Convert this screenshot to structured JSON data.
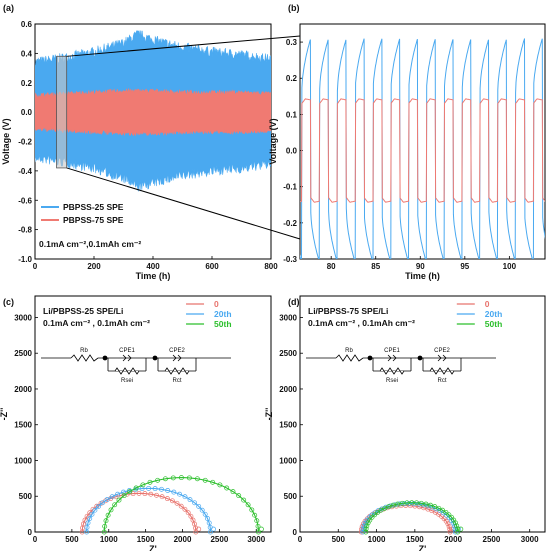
{
  "chart_data": [
    {
      "panel": "(a)",
      "type": "line",
      "xlabel": "Time (h)",
      "ylabel": "Voltage (V)",
      "xlim": [
        0,
        800
      ],
      "ylim": [
        -1.0,
        0.6
      ],
      "xticks": [
        0,
        200,
        400,
        600,
        800
      ],
      "yticks": [
        -1.0,
        -0.8,
        -0.6,
        -0.4,
        -0.2,
        0.0,
        0.2,
        0.4,
        0.6
      ],
      "series": [
        {
          "name": "PBPSS-25 SPE",
          "color": "#4aa9f0",
          "x": [
            0,
            100,
            200,
            300,
            350,
            400,
            500,
            600,
            700,
            800
          ],
          "upper": [
            0.33,
            0.36,
            0.4,
            0.46,
            0.52,
            0.48,
            0.43,
            0.4,
            0.38,
            0.35
          ],
          "lower": [
            -0.3,
            -0.33,
            -0.37,
            -0.44,
            -0.5,
            -0.47,
            -0.42,
            -0.39,
            -0.37,
            -0.34
          ]
        },
        {
          "name": "PBPSS-75 SPE",
          "color": "#f07a72",
          "x": [
            0,
            100,
            200,
            300,
            400,
            500,
            600,
            700,
            800
          ],
          "upper": [
            0.11,
            0.12,
            0.13,
            0.14,
            0.14,
            0.13,
            0.13,
            0.13,
            0.12
          ],
          "lower": [
            -0.11,
            -0.12,
            -0.13,
            -0.14,
            -0.14,
            -0.13,
            -0.13,
            -0.13,
            -0.12
          ]
        }
      ],
      "annotation": "0.1mA cm⁻²,0.1mAh cm⁻²"
    },
    {
      "panel": "(b)",
      "type": "line",
      "xlabel": "Time (h)",
      "ylabel": "Voltage (V)",
      "xlim": [
        76.5,
        104
      ],
      "ylim": [
        -0.3,
        0.35
      ],
      "xticks": [
        80,
        85,
        90,
        95,
        100
      ],
      "yticks": [
        -0.3,
        -0.2,
        -0.1,
        0.0,
        0.1,
        0.2,
        0.3
      ],
      "cycle_period_h": 2,
      "series": [
        {
          "name": "PBPSS-25 SPE",
          "color": "#4aa9f0",
          "peak": 0.31,
          "plateau_start": 0.16
        },
        {
          "name": "PBPSS-75 SPE",
          "color": "#f07a72",
          "peak": 0.145,
          "plateau_start": 0.13
        }
      ]
    },
    {
      "panel": "(c)",
      "type": "scatter",
      "title": "Li/PBPSS-25 SPE/Li",
      "subtitle": "0.1mA cm⁻² , 0.1mAh cm⁻²",
      "xlabel": "Z'",
      "ylabel": "-Z''",
      "xlim": [
        0,
        3200
      ],
      "ylim": [
        0,
        3300
      ],
      "xticks": [
        0,
        500,
        1000,
        1500,
        2000,
        2500,
        3000
      ],
      "yticks": [
        0,
        500,
        1000,
        1500,
        2000,
        2500,
        3000
      ],
      "circuit": {
        "labels": [
          "Rb",
          "CPE1",
          "Rsei",
          "CPE2",
          "Rct"
        ]
      },
      "series": [
        {
          "name": "0",
          "color": "#e8746e",
          "start": 640,
          "end": 2180,
          "height": 540
        },
        {
          "name": "20th",
          "color": "#4aa9f0",
          "start": 700,
          "end": 2380,
          "height": 610
        },
        {
          "name": "50th",
          "color": "#2cbf2c",
          "start": 940,
          "end": 3030,
          "height": 760
        }
      ]
    },
    {
      "panel": "(d)",
      "type": "scatter",
      "title": "Li/PBPSS-75 SPE/Li",
      "subtitle": "0.1mA cm⁻² , 0.1mAh cm⁻²",
      "xlabel": "Z'",
      "ylabel": "-Z''",
      "xlim": [
        0,
        3200
      ],
      "ylim": [
        0,
        3300
      ],
      "xticks": [
        0,
        500,
        1000,
        1500,
        2000,
        2500,
        3000
      ],
      "yticks": [
        0,
        500,
        1000,
        1500,
        2000,
        2500,
        3000
      ],
      "circuit": {
        "labels": [
          "Rb",
          "CPE1",
          "Rsei",
          "CPE2",
          "Rct"
        ]
      },
      "series": [
        {
          "name": "0",
          "color": "#e8746e",
          "start": 800,
          "end": 1960,
          "height": 370
        },
        {
          "name": "20th",
          "color": "#4aa9f0",
          "start": 820,
          "end": 2030,
          "height": 400
        },
        {
          "name": "50th",
          "color": "#2cbf2c",
          "start": 860,
          "end": 2060,
          "height": 410
        }
      ]
    }
  ]
}
